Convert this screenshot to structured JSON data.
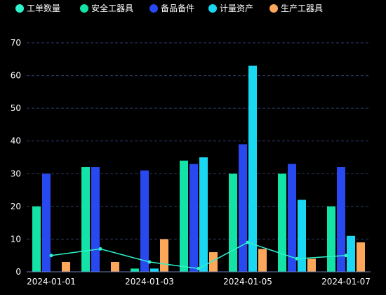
{
  "colors": {
    "background": "#000000",
    "grid": "#2e3a66",
    "axis": "#6a7bb0",
    "text": "#ffffff"
  },
  "chart_data": {
    "type": "bar",
    "title": "",
    "xlabel": "",
    "ylabel": "",
    "ylim": [
      0,
      70
    ],
    "yticks": [
      0,
      10,
      20,
      30,
      40,
      50,
      60,
      70
    ],
    "grid": true,
    "legend_position": "top-left",
    "categories": [
      "2024-01-01",
      "2024-01-02",
      "2024-01-03",
      "2024-01-04",
      "2024-01-05",
      "2024-01-06",
      "2024-01-07"
    ],
    "xtick_labels": [
      "2024-01-01",
      "",
      "2024-01-03",
      "",
      "2024-01-05",
      "",
      "2024-01-07"
    ],
    "series": [
      {
        "name": "工单数量",
        "type": "line",
        "color": "#2ef2cc",
        "values": [
          5,
          7,
          3,
          1,
          9,
          4,
          5
        ]
      },
      {
        "name": "安全工器具",
        "type": "bar",
        "color": "#13e3a6",
        "values": [
          20,
          32,
          1,
          34,
          30,
          30,
          20
        ]
      },
      {
        "name": "备品备件",
        "type": "bar",
        "color": "#2848f0",
        "values": [
          30,
          32,
          31,
          33,
          39,
          33,
          32
        ]
      },
      {
        "name": "计量资产",
        "type": "bar",
        "color": "#1ad8f2",
        "values": [
          0,
          0,
          1,
          35,
          63,
          22,
          11
        ]
      },
      {
        "name": "生产工器具",
        "type": "bar",
        "color": "#fca75a",
        "values": [
          3,
          3,
          10,
          6,
          7,
          4,
          9
        ]
      }
    ]
  }
}
